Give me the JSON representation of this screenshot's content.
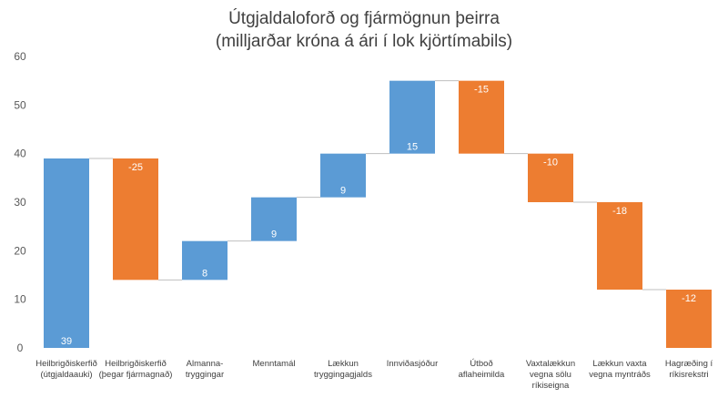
{
  "chart_data": {
    "type": "bar",
    "subtype": "waterfall",
    "title": "Útgjaldaloforð og fjármögnun þeirra",
    "subtitle": "(milljarðar króna á ári í lok kjörtímabils)",
    "categories": [
      [
        "Heilbrigðiskerfið",
        "(útgjaldaauki)"
      ],
      [
        "Heilbrigðiskerfið",
        "(þegar fjármagnað)"
      ],
      [
        "Almanna-",
        "tryggingar"
      ],
      [
        "Menntamál"
      ],
      [
        "Lækkun",
        "tryggingagjalds"
      ],
      [
        "Innviðasjóður"
      ],
      [
        "Útboð",
        "aflaheimilda"
      ],
      [
        "Vaxtalækkun",
        "vegna sölu",
        "ríkiseigna"
      ],
      [
        "Lækkun vaxta",
        "vegna myntráðs"
      ],
      [
        "Hagræðing í",
        "ríkisrekstri"
      ]
    ],
    "values": [
      39,
      -25,
      8,
      9,
      9,
      15,
      -15,
      -10,
      -18,
      -12
    ],
    "data_labels": [
      "39",
      "-25",
      "8",
      "9",
      "9",
      "15",
      "-15",
      "-10",
      "-18",
      "-12"
    ],
    "ylim": [
      0,
      60
    ],
    "yticks": [
      "0",
      "10",
      "20",
      "30",
      "40",
      "50",
      "60"
    ],
    "grid": false,
    "colors": {
      "increase": "#5B9BD5",
      "decrease": "#ED7D31",
      "connector": "#BFBFBF"
    }
  }
}
